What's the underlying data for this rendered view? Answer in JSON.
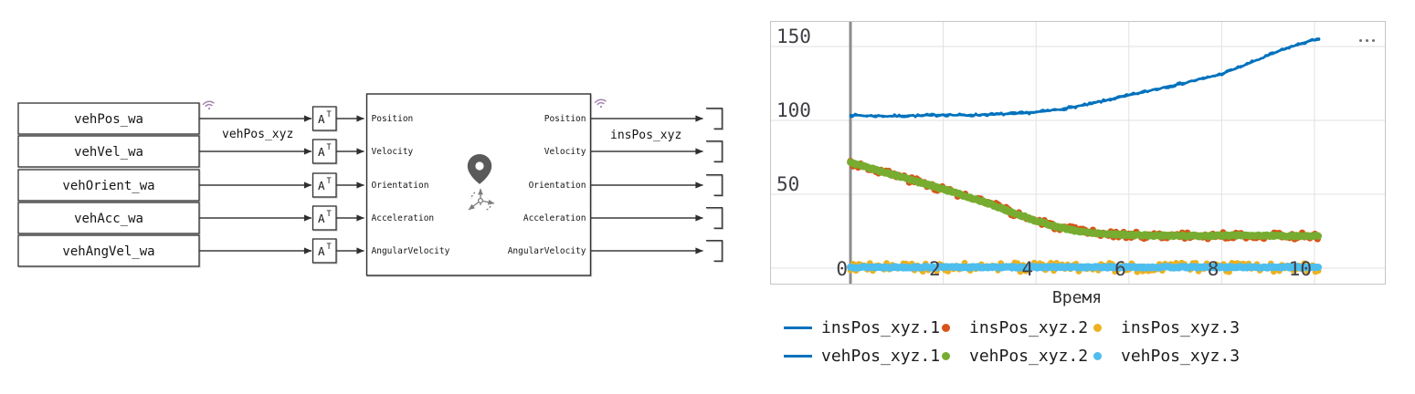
{
  "diagram": {
    "source_blocks": [
      {
        "label": "vehPos_wa"
      },
      {
        "label": "vehVel_wa"
      },
      {
        "label": "vehOrient_wa"
      },
      {
        "label": "vehAcc_wa"
      },
      {
        "label": "vehAngVel_wa"
      }
    ],
    "transpose": {
      "base": "A",
      "sup": "T"
    },
    "wire_labels": {
      "first_input": "vehPos_xyz",
      "first_output": "insPos_xyz"
    },
    "ins_block": {
      "input_ports": [
        "Position",
        "Velocity",
        "Orientation",
        "Acceleration",
        "AngularVelocity"
      ],
      "output_ports": [
        "Position",
        "Velocity",
        "Orientation",
        "Acceleration",
        "AngularVelocity"
      ],
      "icons": [
        "location-pin",
        "axes-triad"
      ]
    },
    "badges": [
      "wireless-log",
      "wireless-log"
    ]
  },
  "chart_data": {
    "type": "line",
    "xlabel": "Время",
    "xlim": [
      -1.71,
      11.5
    ],
    "ylim": [
      -10.5,
      166.5
    ],
    "x_ticks": [
      0,
      2,
      4,
      6,
      8,
      10
    ],
    "y_ticks": [
      150,
      100,
      50
    ],
    "y_gridlines": [
      0,
      50,
      100,
      150
    ],
    "grid": true,
    "cursor": {
      "x": 0,
      "color": "#8c8c8c",
      "width": 3
    },
    "t_end": 10.1,
    "menu_icon": "ellipsis-dots",
    "series": [
      {
        "name": "insPos_xyz.2",
        "color": "#D95319",
        "style": "dots",
        "r": 3.6,
        "step": 0.055,
        "noise": 2.2,
        "seed": 3,
        "keypoints": [
          [
            0,
            71.5
          ],
          [
            0.5,
            67
          ],
          [
            1,
            62.5
          ],
          [
            1.5,
            58
          ],
          [
            2,
            53.5
          ],
          [
            2.5,
            48.5
          ],
          [
            3,
            43.5
          ],
          [
            3.5,
            37.5
          ],
          [
            4,
            32
          ],
          [
            4.5,
            27.5
          ],
          [
            5,
            24.5
          ],
          [
            5.5,
            23.2
          ],
          [
            6,
            22.5
          ],
          [
            6.5,
            22
          ],
          [
            7,
            22
          ],
          [
            7.5,
            21.8
          ],
          [
            8,
            22
          ],
          [
            8.5,
            22.2
          ],
          [
            9,
            22
          ],
          [
            9.5,
            21.8
          ],
          [
            10,
            21.8
          ],
          [
            10.1,
            21.8
          ]
        ]
      },
      {
        "name": "vehPos_xyz.2",
        "color": "#77AC30",
        "style": "dots",
        "r": 4,
        "step": 0.03,
        "noise": 0.55,
        "seed": 5,
        "keypoints": [
          [
            0,
            71.5
          ],
          [
            0.5,
            67
          ],
          [
            1,
            62.5
          ],
          [
            1.5,
            58
          ],
          [
            2,
            53.5
          ],
          [
            2.5,
            48.5
          ],
          [
            3,
            43.5
          ],
          [
            3.5,
            37.5
          ],
          [
            4,
            32
          ],
          [
            4.5,
            27.5
          ],
          [
            5,
            24.5
          ],
          [
            5.5,
            23.2
          ],
          [
            6,
            22.5
          ],
          [
            6.5,
            22
          ],
          [
            7,
            22
          ],
          [
            7.5,
            21.8
          ],
          [
            8,
            22
          ],
          [
            8.5,
            22.2
          ],
          [
            9,
            22
          ],
          [
            9.5,
            21.8
          ],
          [
            10,
            21.8
          ],
          [
            10.1,
            21.8
          ]
        ]
      },
      {
        "name": "insPos_xyz.3",
        "color": "#EDB120",
        "style": "dots",
        "r": 3.4,
        "step": 0.06,
        "noise": 3.2,
        "seed": 9,
        "keypoints": [
          [
            0,
            0.6
          ],
          [
            10.1,
            0.6
          ]
        ]
      },
      {
        "name": "vehPos_xyz.3",
        "color": "#4DBEEE",
        "style": "dots",
        "r": 4,
        "step": 0.03,
        "noise": 0.45,
        "seed": 13,
        "keypoints": [
          [
            0,
            0.6
          ],
          [
            10.1,
            0.6
          ]
        ]
      },
      {
        "name": "vehPos_xyz.1",
        "color": "#0072BD",
        "style": "line",
        "width": 2.6,
        "step": 0.05,
        "noise": 0.3,
        "seed": 11,
        "keypoints": [
          [
            0,
            103.5
          ],
          [
            0.5,
            103
          ],
          [
            1,
            103
          ],
          [
            1.5,
            103.2
          ],
          [
            2,
            103.8
          ],
          [
            2.5,
            103.5
          ],
          [
            3,
            104
          ],
          [
            3.5,
            104.5
          ],
          [
            4,
            105.5
          ],
          [
            4.5,
            107.5
          ],
          [
            5,
            110
          ],
          [
            5.5,
            113.5
          ],
          [
            6,
            117
          ],
          [
            6.5,
            120.5
          ],
          [
            7,
            124
          ],
          [
            7.5,
            127.5
          ],
          [
            8,
            131.5
          ],
          [
            8.5,
            137.5
          ],
          [
            9,
            144
          ],
          [
            9.5,
            150
          ],
          [
            10,
            154.5
          ],
          [
            10.1,
            155.5
          ]
        ]
      },
      {
        "name": "insPos_xyz.1",
        "color": "#0072BD",
        "style": "line",
        "width": 2.4,
        "step": 0.05,
        "noise": 1.1,
        "seed": 7,
        "keypoints": [
          [
            0,
            103.5
          ],
          [
            0.5,
            103
          ],
          [
            1,
            103
          ],
          [
            1.5,
            103.2
          ],
          [
            2,
            103.8
          ],
          [
            2.5,
            103.5
          ],
          [
            3,
            104
          ],
          [
            3.5,
            104.5
          ],
          [
            4,
            105.5
          ],
          [
            4.5,
            107.5
          ],
          [
            5,
            110
          ],
          [
            5.5,
            113.5
          ],
          [
            6,
            117
          ],
          [
            6.5,
            120.5
          ],
          [
            7,
            124
          ],
          [
            7.5,
            127.5
          ],
          [
            8,
            131.5
          ],
          [
            8.5,
            137.5
          ],
          [
            9,
            144
          ],
          [
            9.5,
            150
          ],
          [
            10,
            154.5
          ],
          [
            10.1,
            155.5
          ]
        ]
      }
    ],
    "legend": {
      "rows": [
        [
          {
            "label": "insPos_xyz.1",
            "marker": "line",
            "color": "#0072BD"
          },
          {
            "label": "insPos_xyz.2",
            "marker": "dot",
            "color": "#D95319"
          },
          {
            "label": "insPos_xyz.3",
            "marker": "dot",
            "color": "#EDB120"
          }
        ],
        [
          {
            "label": "vehPos_xyz.1",
            "marker": "line",
            "color": "#0072BD"
          },
          {
            "label": "vehPos_xyz.2",
            "marker": "dot",
            "color": "#77AC30"
          },
          {
            "label": "vehPos_xyz.3",
            "marker": "dot",
            "color": "#4DBEEE"
          }
        ]
      ]
    }
  }
}
